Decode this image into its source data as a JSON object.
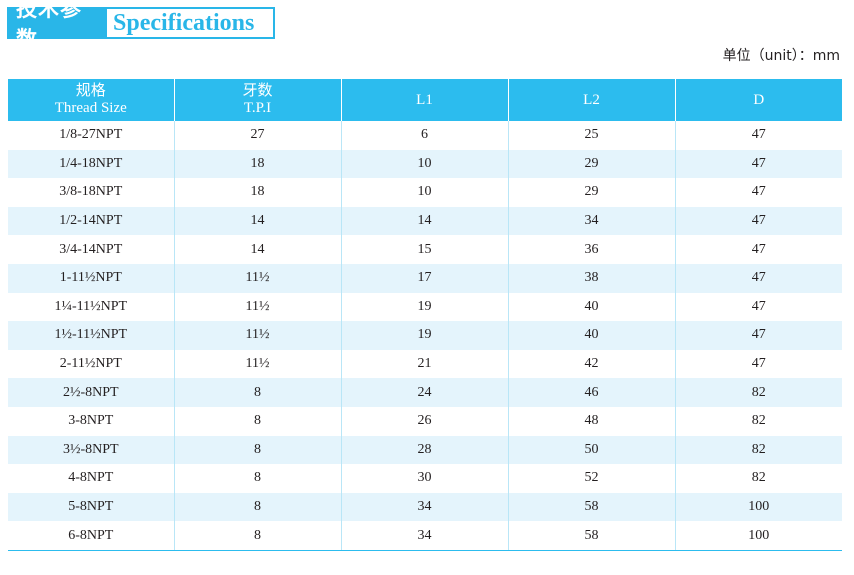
{
  "title": {
    "cn": "技术参数",
    "en": "Specifications"
  },
  "unit_note": "单位（unit）：mm",
  "colors": {
    "accent": "#29b6e8",
    "header_bg": "#2cbcee",
    "alt_row_bg": "#e4f4fc"
  },
  "table": {
    "headers": [
      {
        "line1": "规格",
        "line2": "Thread Size"
      },
      {
        "line1": "牙数",
        "line2": "T.P.I"
      },
      {
        "line1": "L1",
        "line2": ""
      },
      {
        "line1": "L2",
        "line2": ""
      },
      {
        "line1": "D",
        "line2": ""
      }
    ],
    "rows": [
      [
        "1/8-27NPT",
        "27",
        "6",
        "25",
        "47"
      ],
      [
        "1/4-18NPT",
        "18",
        "10",
        "29",
        "47"
      ],
      [
        "3/8-18NPT",
        "18",
        "10",
        "29",
        "47"
      ],
      [
        "1/2-14NPT",
        "14",
        "14",
        "34",
        "47"
      ],
      [
        "3/4-14NPT",
        "14",
        "15",
        "36",
        "47"
      ],
      [
        "1-11½NPT",
        "11½",
        "17",
        "38",
        "47"
      ],
      [
        "1¼-11½NPT",
        "11½",
        "19",
        "40",
        "47"
      ],
      [
        "1½-11½NPT",
        "11½",
        "19",
        "40",
        "47"
      ],
      [
        "2-11½NPT",
        "11½",
        "21",
        "42",
        "47"
      ],
      [
        "2½-8NPT",
        "8",
        "24",
        "46",
        "82"
      ],
      [
        "3-8NPT",
        "8",
        "26",
        "48",
        "82"
      ],
      [
        "3½-8NPT",
        "8",
        "28",
        "50",
        "82"
      ],
      [
        "4-8NPT",
        "8",
        "30",
        "52",
        "82"
      ],
      [
        "5-8NPT",
        "8",
        "34",
        "58",
        "100"
      ],
      [
        "6-8NPT",
        "8",
        "34",
        "58",
        "100"
      ]
    ]
  }
}
